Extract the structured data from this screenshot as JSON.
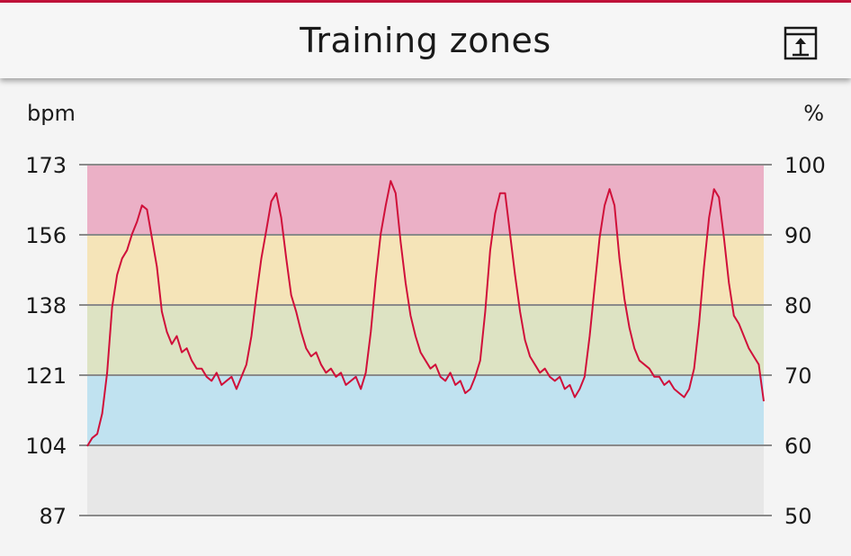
{
  "header": {
    "title": "Training zones",
    "export_icon": "export-icon"
  },
  "colors": {
    "accent": "#c4123a",
    "line": "#d0103a",
    "zone_max": "#ebb0c6",
    "zone_hard": "#f5e4b8",
    "zone_moderate": "#dde3c3",
    "zone_light": "#c0e2f0",
    "zone_very_light": "#e7e7e7"
  },
  "chart_data": {
    "type": "line",
    "ylabel_left": "bpm",
    "ylabel_right": "%",
    "yticks_left": [
      "173",
      "156",
      "138",
      "121",
      "104",
      "87"
    ],
    "yticks_right": [
      "100",
      "90",
      "80",
      "70",
      "60",
      "50"
    ],
    "ylim_bpm": [
      87,
      173
    ],
    "ylim_percent": [
      50,
      100
    ],
    "zones": [
      {
        "from_percent": 90,
        "to_percent": 100,
        "color": "#ebb0c6"
      },
      {
        "from_percent": 80,
        "to_percent": 90,
        "color": "#f5e4b8"
      },
      {
        "from_percent": 70,
        "to_percent": 80,
        "color": "#dde3c3"
      },
      {
        "from_percent": 60,
        "to_percent": 70,
        "color": "#c0e2f0"
      },
      {
        "from_percent": 50,
        "to_percent": 60,
        "color": "#e7e7e7"
      }
    ],
    "grid": true,
    "series": [
      {
        "values": [
          104,
          106,
          107,
          112,
          122,
          138,
          146,
          150,
          152,
          156,
          159,
          163,
          162,
          155,
          148,
          137,
          132,
          129,
          131,
          127,
          128,
          125,
          123,
          123,
          121,
          120,
          122,
          119,
          120,
          121,
          118,
          121,
          124,
          131,
          141,
          150,
          157,
          164,
          166,
          160,
          150,
          141,
          137,
          132,
          128,
          126,
          127,
          124,
          122,
          123,
          121,
          122,
          119,
          120,
          121,
          118,
          122,
          132,
          145,
          156,
          163,
          169,
          166,
          154,
          144,
          136,
          131,
          127,
          125,
          123,
          124,
          121,
          120,
          122,
          119,
          120,
          117,
          118,
          121,
          125,
          137,
          152,
          161,
          166,
          166,
          156,
          146,
          137,
          130,
          126,
          124,
          122,
          123,
          121,
          120,
          121,
          118,
          119,
          116,
          118,
          121,
          131,
          143,
          155,
          163,
          167,
          163,
          150,
          140,
          133,
          128,
          125,
          124,
          123,
          121,
          121,
          119,
          120,
          118,
          117,
          116,
          118,
          123,
          134,
          148,
          160,
          167,
          165,
          155,
          144,
          136,
          134,
          131,
          128,
          126,
          124,
          115
        ]
      }
    ]
  }
}
